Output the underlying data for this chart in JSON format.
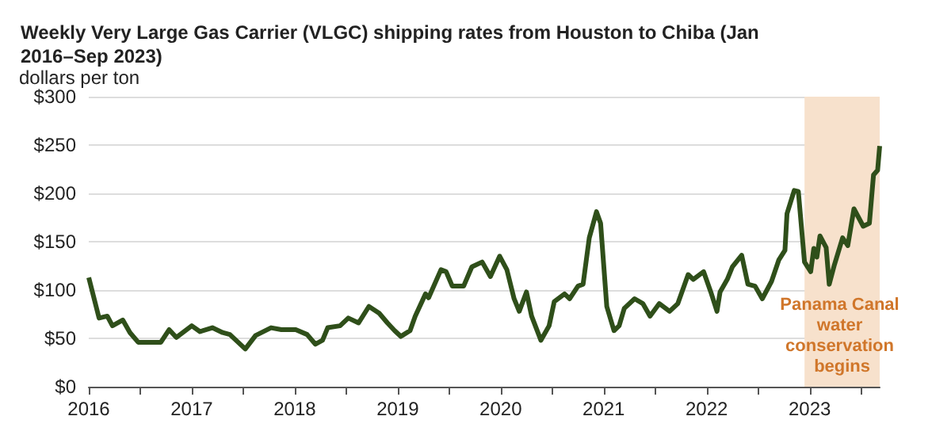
{
  "chart_data": {
    "type": "line",
    "title": "Weekly Very Large Gas Carrier (VLGC) shipping rates from Houston to Chiba (Jan 2016–Sep 2023)",
    "ylabel": "dollars per ton",
    "x": [
      2016.0,
      2016.1,
      2016.18,
      2016.23,
      2016.33,
      2016.4,
      2016.48,
      2016.63,
      2016.7,
      2016.78,
      2016.85,
      2017.0,
      2017.08,
      2017.2,
      2017.3,
      2017.37,
      2017.52,
      2017.62,
      2017.77,
      2017.87,
      2018.01,
      2018.12,
      2018.2,
      2018.27,
      2018.32,
      2018.44,
      2018.52,
      2018.62,
      2018.72,
      2018.82,
      2018.9,
      2018.97,
      2019.03,
      2019.12,
      2019.17,
      2019.27,
      2019.3,
      2019.42,
      2019.47,
      2019.53,
      2019.64,
      2019.72,
      2019.82,
      2019.9,
      2019.99,
      2020.06,
      2020.13,
      2020.18,
      2020.25,
      2020.3,
      2020.39,
      2020.47,
      2020.52,
      2020.62,
      2020.67,
      2020.75,
      2020.8,
      2020.86,
      2020.93,
      2020.97,
      2021.03,
      2021.1,
      2021.15,
      2021.2,
      2021.3,
      2021.38,
      2021.45,
      2021.54,
      2021.64,
      2021.72,
      2021.82,
      2021.87,
      2021.97,
      2022.04,
      2022.1,
      2022.13,
      2022.2,
      2022.25,
      2022.34,
      2022.4,
      2022.47,
      2022.54,
      2022.63,
      2022.7,
      2022.76,
      2022.78,
      2022.85,
      2022.89,
      2022.95,
      2023.01,
      2023.04,
      2023.07,
      2023.1,
      2023.16,
      2023.19,
      2023.24,
      2023.32,
      2023.37,
      2023.43,
      2023.52,
      2023.58,
      2023.62,
      2023.66,
      2023.68
    ],
    "series": [
      {
        "color": "#2f4f1a",
        "values": [
          113,
          71,
          73,
          63,
          69,
          56,
          46,
          46,
          46,
          59,
          51,
          63,
          57,
          61,
          56,
          54,
          39,
          53,
          61,
          59,
          59,
          54,
          44,
          48,
          61,
          63,
          71,
          66,
          83,
          76,
          66,
          58,
          52,
          58,
          73,
          96,
          92,
          121,
          119,
          104,
          104,
          124,
          129,
          114,
          135,
          121,
          91,
          78,
          98,
          73,
          48,
          63,
          88,
          96,
          91,
          104,
          106,
          154,
          181,
          169,
          83,
          58,
          63,
          81,
          91,
          86,
          73,
          86,
          78,
          86,
          116,
          111,
          119,
          98,
          78,
          98,
          111,
          124,
          136,
          106,
          104,
          91,
          109,
          131,
          141,
          179,
          203,
          202,
          129,
          119,
          143,
          134,
          156,
          144,
          106,
          126,
          154,
          146,
          184,
          166,
          169,
          219,
          224,
          249
        ]
      }
    ],
    "xlim": [
      2016,
      2023.68
    ],
    "xticks": [
      2016,
      {
        "value": 2016.5,
        "label": null
      },
      2017,
      {
        "value": 2017.5,
        "label": null
      },
      2018,
      {
        "value": 2018.5,
        "label": null
      },
      2019,
      {
        "value": 2019.5,
        "label": null
      },
      2020,
      {
        "value": 2020.5,
        "label": null
      },
      2021,
      {
        "value": 2021.5,
        "label": null
      },
      2022,
      {
        "value": 2022.5,
        "label": null
      },
      2023,
      {
        "value": 2023.5,
        "label": null
      }
    ],
    "ylim": [
      0,
      300
    ],
    "yticks": [
      {
        "value": 0,
        "label": "$0"
      },
      {
        "value": 50,
        "label": "$50"
      },
      {
        "value": 100,
        "label": "$100"
      },
      {
        "value": 150,
        "label": "$150"
      },
      {
        "value": 200,
        "label": "$200"
      },
      {
        "value": 250,
        "label": "$250"
      },
      {
        "value": 300,
        "label": "$300"
      }
    ],
    "bands": [
      {
        "axis": "x",
        "from": 2022.95,
        "to": 2023.68,
        "label": "Panama Canal water conservation begins",
        "color": "#f7e1cc"
      }
    ],
    "grid": "y",
    "marker": "none",
    "line_style": "solid"
  }
}
